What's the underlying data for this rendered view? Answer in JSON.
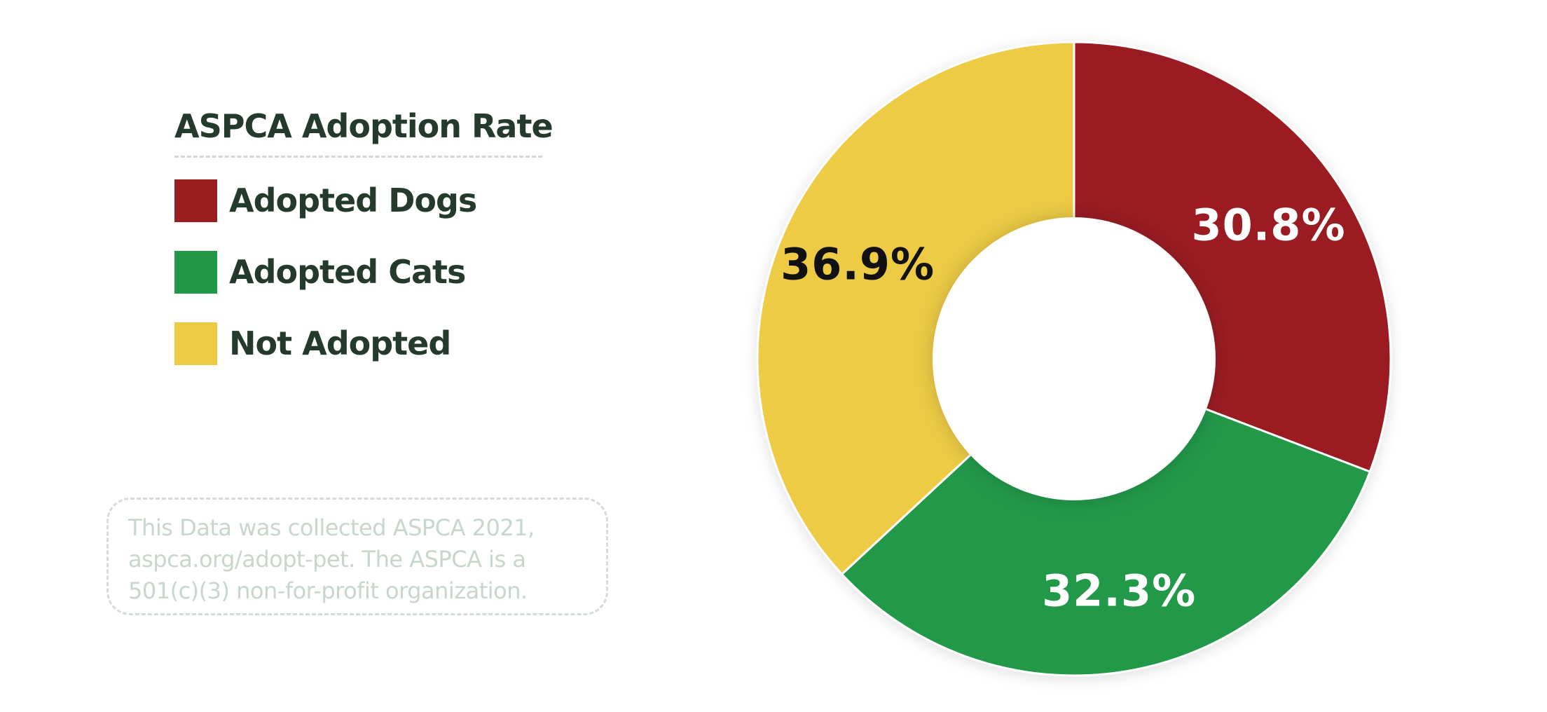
{
  "chart_data": {
    "type": "pie",
    "title": "ASPCA Adoption Rate",
    "legend_position": "left",
    "categories": [
      "Adopted Dogs",
      "Adopted Cats",
      "Not Adopted"
    ],
    "values": [
      30.8,
      32.3,
      36.9
    ],
    "labels": [
      "30.8%",
      "32.3%",
      "36.9%"
    ],
    "colors": [
      "#9a1e20",
      "#209848",
      "#edcb45"
    ],
    "label_colors": [
      "#ffffff",
      "#ffffff",
      "#111111"
    ],
    "note_lines": [
      "This Data was collected ASPCA 2021,",
      "aspca.org/adopt-pet. The ASPCA is a",
      "501(c)(3) non-for-profit organization."
    ]
  }
}
